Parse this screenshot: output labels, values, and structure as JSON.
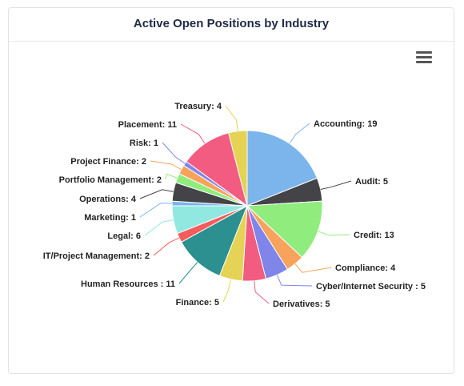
{
  "header": {
    "title": "Active Open Positions by Industry"
  },
  "toolbar": {
    "menu_icon": "hamburger-menu-icon"
  },
  "chart_data": {
    "type": "pie",
    "title": "Active Open Positions by Industry",
    "slices": [
      {
        "label": "Accounting",
        "value": 19,
        "color": "#7cb5ec"
      },
      {
        "label": "Audit",
        "value": 5,
        "color": "#434348"
      },
      {
        "label": "Credit",
        "value": 13,
        "color": "#90ed7d"
      },
      {
        "label": "Compliance",
        "value": 4,
        "color": "#f7a35c"
      },
      {
        "label": "Cyber/Internet Security ",
        "value": 5,
        "color": "#8085e9"
      },
      {
        "label": "Derivatives",
        "value": 5,
        "color": "#f15c80"
      },
      {
        "label": "Finance",
        "value": 5,
        "color": "#e4d354"
      },
      {
        "label": "Human Resources ",
        "value": 11,
        "color": "#2b908f"
      },
      {
        "label": "IT/Project Management",
        "value": 2,
        "color": "#f45b5b"
      },
      {
        "label": "Legal",
        "value": 6,
        "color": "#91e8e1"
      },
      {
        "label": "Marketing",
        "value": 1,
        "color": "#7cb5ec"
      },
      {
        "label": "Operations",
        "value": 4,
        "color": "#434348"
      },
      {
        "label": "Portfolio Management",
        "value": 2,
        "color": "#90ed7d"
      },
      {
        "label": "Project Finance",
        "value": 2,
        "color": "#f7a35c"
      },
      {
        "label": "Risk",
        "value": 1,
        "color": "#8085e9"
      },
      {
        "label": "Placement",
        "value": 11,
        "color": "#f15c80"
      },
      {
        "label": "Treasury",
        "value": 4,
        "color": "#e4d354"
      }
    ]
  }
}
